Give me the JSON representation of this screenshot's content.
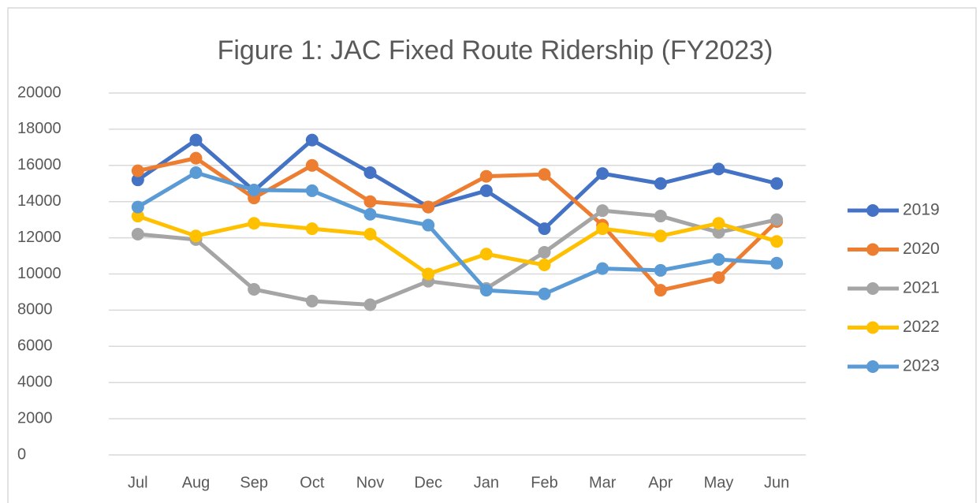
{
  "chart_data": {
    "type": "line",
    "title": "Figure 1: JAC Fixed Route Ridership (FY2023)",
    "categories": [
      "Jul",
      "Aug",
      "Sep",
      "Oct",
      "Nov",
      "Dec",
      "Jan",
      "Feb",
      "Mar",
      "Apr",
      "May",
      "Jun"
    ],
    "series": [
      {
        "name": "2019",
        "color": "#4472c4",
        "values": [
          15200,
          17400,
          14600,
          17400,
          15600,
          13700,
          14600,
          12500,
          15550,
          15000,
          15800,
          15000
        ]
      },
      {
        "name": "2020",
        "color": "#ed7d31",
        "values": [
          15700,
          16400,
          14200,
          16000,
          14000,
          13700,
          15400,
          15500,
          12700,
          9100,
          9800,
          12900
        ]
      },
      {
        "name": "2021",
        "color": "#a5a5a5",
        "values": [
          12200,
          11900,
          9150,
          8500,
          8300,
          9600,
          9200,
          11200,
          13500,
          13200,
          12300,
          13000
        ]
      },
      {
        "name": "2022",
        "color": "#ffc000",
        "values": [
          13200,
          12100,
          12800,
          12500,
          12200,
          10000,
          11100,
          10500,
          12500,
          12100,
          12800,
          11800
        ]
      },
      {
        "name": "2023",
        "color": "#5b9bd5",
        "values": [
          13700,
          15600,
          14640,
          14600,
          13300,
          12700,
          9100,
          8900,
          10300,
          10200,
          10800,
          10600
        ]
      }
    ],
    "ylim": [
      0,
      20000
    ],
    "yticks": [
      0,
      2000,
      4000,
      6000,
      8000,
      10000,
      12000,
      14000,
      16000,
      18000,
      20000
    ],
    "grid": true,
    "legend": "right"
  }
}
